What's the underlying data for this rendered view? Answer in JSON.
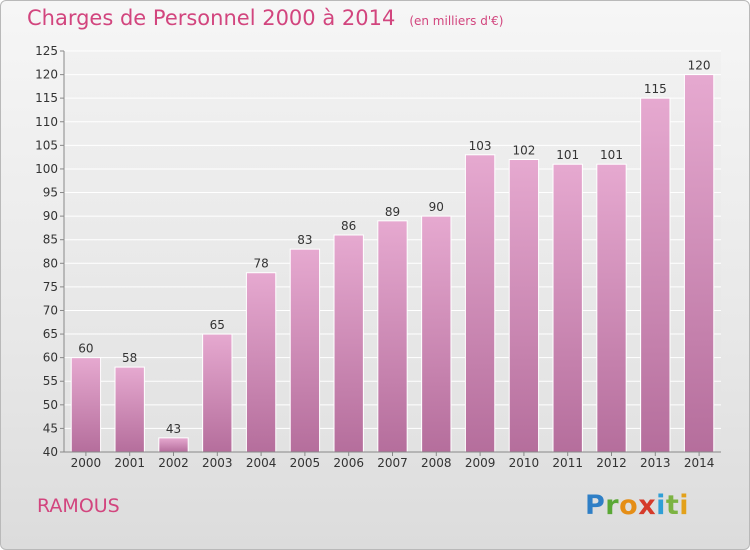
{
  "header": {
    "title": "Charges de Personnel 2000 à 2014",
    "subtitle": "(en milliers d'€)"
  },
  "footer": {
    "commune": "RAMOUS",
    "logo_text": "Proxiti"
  },
  "colors": {
    "accent": "#d2457e",
    "bar_light": "#e6a9d0",
    "bar_dark": "#b56e9c"
  },
  "chart_data": {
    "type": "bar",
    "categories": [
      "2000",
      "2001",
      "2002",
      "2003",
      "2004",
      "2005",
      "2006",
      "2007",
      "2008",
      "2009",
      "2010",
      "2011",
      "2012",
      "2013",
      "2014"
    ],
    "values": [
      60,
      58,
      43,
      65,
      78,
      83,
      86,
      89,
      90,
      103,
      102,
      101,
      101,
      115,
      120
    ],
    "title": "Charges de Personnel 2000 à 2014",
    "subtitle": "(en milliers d'€)",
    "xlabel": "",
    "ylabel": "",
    "ylim": [
      40,
      125
    ],
    "yticks": [
      40,
      45,
      50,
      55,
      60,
      65,
      70,
      75,
      80,
      85,
      90,
      95,
      100,
      105,
      110,
      115,
      120,
      125
    ],
    "grid": true,
    "legend": "none"
  }
}
